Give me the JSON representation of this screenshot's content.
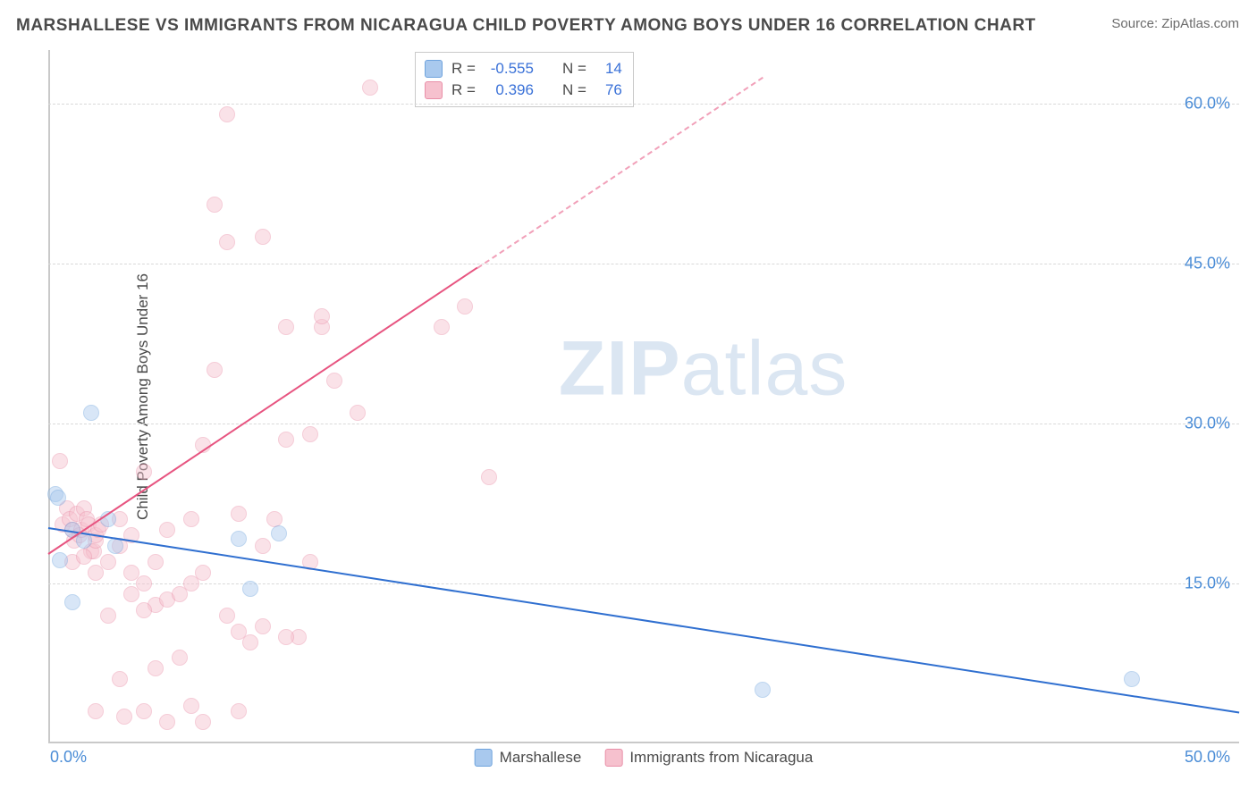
{
  "title": "MARSHALLESE VS IMMIGRANTS FROM NICARAGUA CHILD POVERTY AMONG BOYS UNDER 16 CORRELATION CHART",
  "source_label": "Source:",
  "source_name": "ZipAtlas.com",
  "ylabel": "Child Poverty Among Boys Under 16",
  "watermark_a": "ZIP",
  "watermark_b": "atlas",
  "chart": {
    "type": "scatter",
    "xlim": [
      0,
      50
    ],
    "ylim": [
      0,
      65
    ],
    "xtick_min_label": "0.0%",
    "xtick_max_label": "50.0%",
    "ytick_labels": [
      "15.0%",
      "30.0%",
      "45.0%",
      "60.0%"
    ],
    "ytick_values": [
      15,
      30,
      45,
      60
    ],
    "grid_color": "#d9d9d9",
    "axis_color": "#c9c9c9",
    "background_color": "#ffffff",
    "tick_font_color": "#4a8cd6",
    "tick_fontsize": 18,
    "label_fontsize": 17,
    "label_color": "#4a4a4a",
    "marker_radius": 9,
    "marker_opacity": 0.45,
    "line_width": 2
  },
  "series": {
    "a": {
      "label": "Marshallese",
      "color_fill": "#a9c9ee",
      "color_stroke": "#6fa3dd",
      "line_color": "#2f6fd0",
      "R": "-0.555",
      "N": "14",
      "trend": {
        "x1": 0,
        "y1": 20.3,
        "x2": 50,
        "y2": 3.0,
        "dashed_from_x": null
      },
      "points": [
        [
          0.3,
          23.4
        ],
        [
          0.4,
          23.0
        ],
        [
          0.5,
          17.2
        ],
        [
          1.0,
          13.2
        ],
        [
          1.8,
          31.0
        ],
        [
          1.0,
          20.0
        ],
        [
          2.5,
          21.0
        ],
        [
          1.5,
          19.0
        ],
        [
          8.0,
          19.2
        ],
        [
          9.7,
          19.7
        ],
        [
          8.5,
          14.5
        ],
        [
          30.0,
          5.0
        ],
        [
          45.5,
          6.0
        ],
        [
          2.8,
          18.5
        ]
      ]
    },
    "b": {
      "label": "Immigrants from Nicaragua",
      "color_fill": "#f6c1ce",
      "color_stroke": "#e98fa8",
      "line_color": "#e75480",
      "R": "0.396",
      "N": "76",
      "trend": {
        "x1": 0,
        "y1": 17.8,
        "x2": 30,
        "y2": 62.5,
        "dashed_from_x": 18
      },
      "points": [
        [
          0.5,
          26.5
        ],
        [
          0.6,
          20.5
        ],
        [
          0.8,
          22.0
        ],
        [
          0.9,
          21.0
        ],
        [
          1.0,
          20.0
        ],
        [
          1.1,
          19.0
        ],
        [
          1.2,
          21.5
        ],
        [
          1.3,
          19.5
        ],
        [
          1.4,
          20.0
        ],
        [
          1.5,
          22.0
        ],
        [
          1.6,
          21.0
        ],
        [
          1.7,
          20.5
        ],
        [
          1.8,
          18.0
        ],
        [
          1.9,
          18.0
        ],
        [
          2.0,
          19.0
        ],
        [
          2.0,
          19.5
        ],
        [
          2.1,
          20.0
        ],
        [
          2.2,
          20.5
        ],
        [
          1.0,
          17.0
        ],
        [
          1.5,
          17.5
        ],
        [
          2.0,
          16.0
        ],
        [
          2.5,
          17.0
        ],
        [
          3.0,
          21.0
        ],
        [
          3.0,
          18.5
        ],
        [
          3.5,
          19.5
        ],
        [
          3.5,
          16.0
        ],
        [
          4.0,
          15.0
        ],
        [
          4.0,
          25.5
        ],
        [
          4.5,
          17.0
        ],
        [
          4.5,
          13.0
        ],
        [
          5.0,
          13.5
        ],
        [
          5.0,
          20.0
        ],
        [
          5.5,
          14.0
        ],
        [
          5.5,
          8.0
        ],
        [
          6.0,
          21.0
        ],
        [
          6.0,
          15.0
        ],
        [
          6.5,
          16.0
        ],
        [
          6.5,
          28.0
        ],
        [
          7.0,
          35.0
        ],
        [
          7.5,
          47.0
        ],
        [
          7.5,
          12.0
        ],
        [
          8.0,
          21.5
        ],
        [
          8.0,
          10.5
        ],
        [
          8.5,
          9.5
        ],
        [
          4.5,
          7.0
        ],
        [
          3.0,
          6.0
        ],
        [
          9.0,
          11.0
        ],
        [
          9.5,
          21.0
        ],
        [
          10.0,
          28.5
        ],
        [
          10.5,
          10.0
        ],
        [
          11.0,
          29.0
        ],
        [
          11.5,
          39.0
        ],
        [
          11.5,
          40.0
        ],
        [
          12.0,
          34.0
        ],
        [
          7.0,
          50.5
        ],
        [
          7.5,
          59.0
        ],
        [
          13.0,
          31.0
        ],
        [
          13.5,
          61.5
        ],
        [
          16.5,
          39.0
        ],
        [
          17.5,
          41.0
        ],
        [
          11.0,
          17.0
        ],
        [
          3.5,
          14.0
        ],
        [
          4.0,
          12.5
        ],
        [
          2.5,
          12.0
        ],
        [
          3.2,
          2.5
        ],
        [
          5.0,
          2.0
        ],
        [
          6.0,
          3.5
        ],
        [
          2.0,
          3.0
        ],
        [
          9.0,
          18.5
        ],
        [
          10.0,
          10.0
        ],
        [
          6.5,
          2.0
        ],
        [
          8.0,
          3.0
        ],
        [
          18.5,
          25.0
        ],
        [
          10.0,
          39.0
        ],
        [
          9.0,
          47.5
        ],
        [
          4.0,
          3.0
        ]
      ]
    }
  },
  "legend_series": [
    "a",
    "b"
  ],
  "statbox": {
    "rows": [
      {
        "series": "a"
      },
      {
        "series": "b"
      }
    ],
    "R_label": "R =",
    "N_label": "N =",
    "value_color": "#3b72d8",
    "border_color": "#c9c9c9",
    "fontsize": 17
  }
}
